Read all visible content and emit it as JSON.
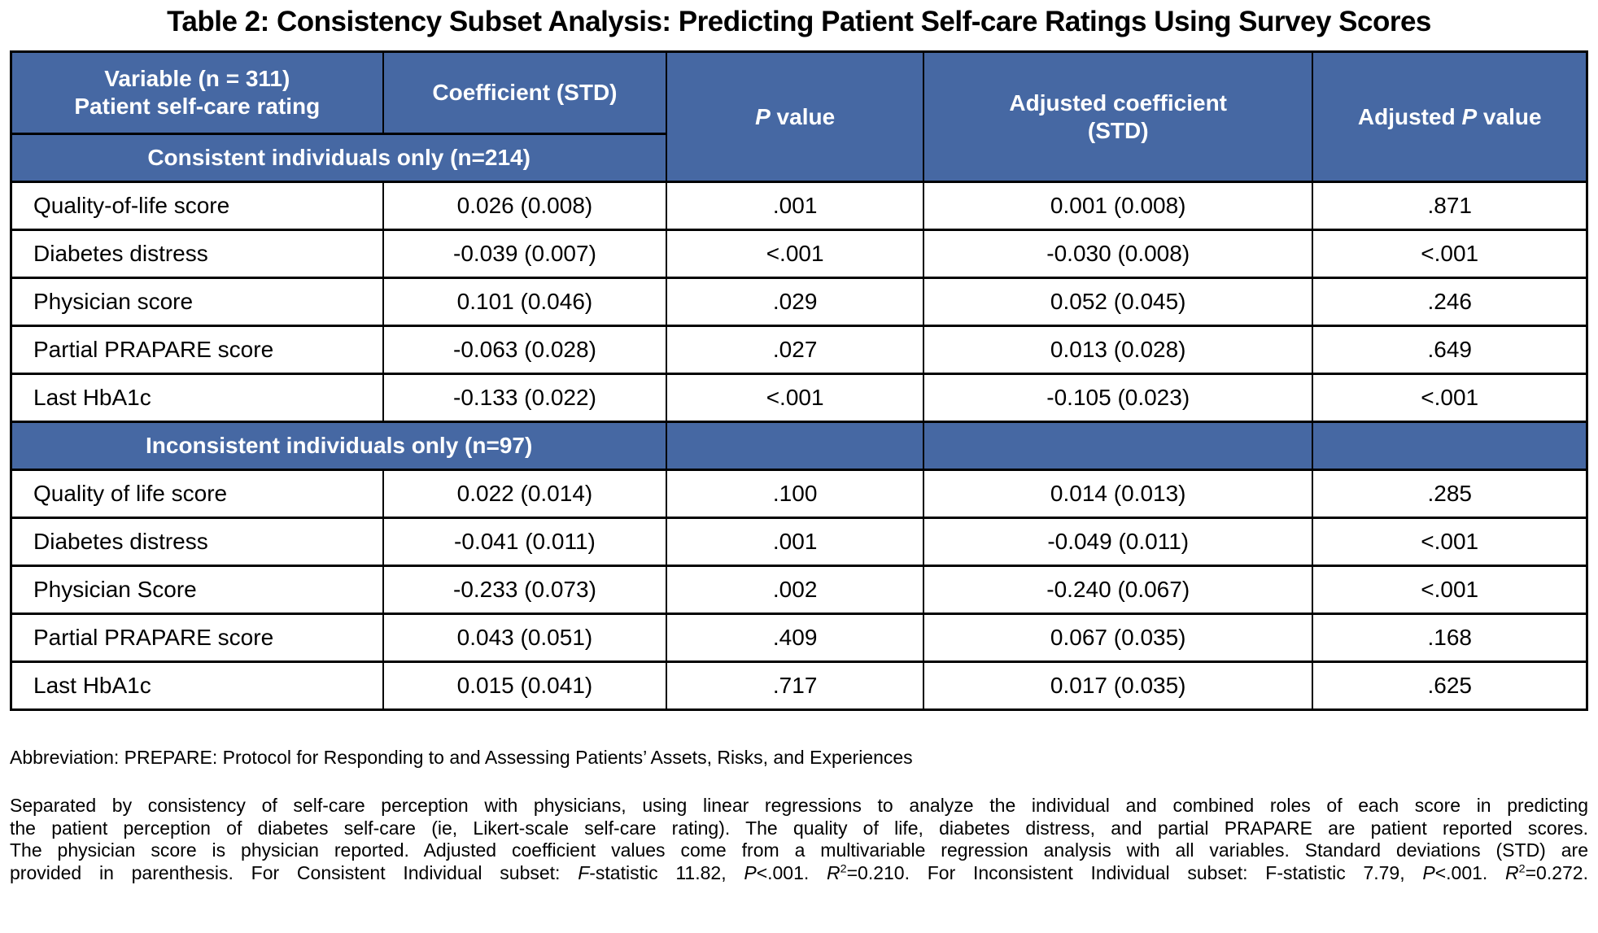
{
  "title": "Table 2: Consistency Subset Analysis: Predicting Patient Self-care Ratings Using Survey Scores",
  "colors": {
    "header_blue": "#4668A3",
    "header_text": "#FFFFFF",
    "border": "#000000",
    "body_text": "#000000",
    "background": "#FFFFFF"
  },
  "table": {
    "header": {
      "variable_lines": [
        "Variable (n = 311)",
        "Patient self-care rating"
      ],
      "coefficient": "Coefficient (STD)",
      "p_value_segments": [
        {
          "text": "P",
          "italic": true
        },
        {
          "text": " value"
        }
      ],
      "adjusted_coefficient_lines": [
        "Adjusted coefficient",
        "(STD)"
      ],
      "adjusted_p_value_segments": [
        {
          "text": "Adjusted "
        },
        {
          "text": "P",
          "italic": true
        },
        {
          "text": " value"
        }
      ]
    },
    "sections": [
      {
        "label": "Consistent individuals only (n=214)",
        "rows": [
          [
            "Quality-of-life score",
            "0.026 (0.008)",
            ".001",
            "0.001 (0.008)",
            ".871"
          ],
          [
            "Diabetes distress",
            "-0.039 (0.007)",
            "<.001",
            "-0.030 (0.008)",
            "<.001"
          ],
          [
            "Physician score",
            "0.101 (0.046)",
            ".029",
            "0.052 (0.045)",
            ".246"
          ],
          [
            "Partial PRAPARE score",
            "-0.063 (0.028)",
            ".027",
            "0.013 (0.028)",
            ".649"
          ],
          [
            "Last HbA1c",
            "-0.133 (0.022)",
            "<.001",
            "-0.105 (0.023)",
            "<.001"
          ]
        ]
      },
      {
        "label": "Inconsistent individuals only (n=97)",
        "rows": [
          [
            "Quality of life score",
            "0.022 (0.014)",
            ".100",
            "0.014 (0.013)",
            ".285"
          ],
          [
            "Diabetes distress",
            "-0.041 (0.011)",
            ".001",
            "-0.049 (0.011)",
            "<.001"
          ],
          [
            "Physician Score",
            "-0.233 (0.073)",
            ".002",
            "-0.240 (0.067)",
            "<.001"
          ],
          [
            "Partial PRAPARE score",
            "0.043 (0.051)",
            ".409",
            "0.067 (0.035)",
            ".168"
          ],
          [
            "Last HbA1c",
            "0.015 (0.041)",
            ".717",
            "0.017 (0.035)",
            ".625"
          ]
        ]
      }
    ]
  },
  "footnotes": {
    "abbreviation": "Abbreviation: PREPARE: Protocol for Responding to and Assessing Patients’ Assets, Risks, and Experiences",
    "paragraph_lines": [
      [
        {
          "text": "Separated by consistency of self-care perception with physicians, using linear regressions to analyze the individual and combined roles of each score in predicting"
        }
      ],
      [
        {
          "text": "the patient perception of diabetes self-care (ie, Likert-scale self-care rating). The quality of life, diabetes distress, and partial PRAPARE are patient reported scores."
        }
      ],
      [
        {
          "text": "The physician score is physician reported. Adjusted coefficient values come from a multivariable regression analysis with all variables. Standard deviations (STD) are"
        }
      ],
      [
        {
          "text": "provided in parenthesis. For Consistent Individual subset: "
        },
        {
          "text": "F",
          "italic": true
        },
        {
          "text": "-statistic 11.82, "
        },
        {
          "text": "P",
          "italic": true
        },
        {
          "text": "<.001. "
        },
        {
          "text": "R",
          "italic": true
        },
        {
          "text": "2",
          "sup": true
        },
        {
          "text": "=0.210. For Inconsistent Individual subset: F-statistic 7.79, "
        },
        {
          "text": "P",
          "italic": true
        },
        {
          "text": "<.001. "
        },
        {
          "text": "R",
          "italic": true
        },
        {
          "text": "2",
          "sup": true
        },
        {
          "text": "=0.272."
        }
      ]
    ]
  }
}
